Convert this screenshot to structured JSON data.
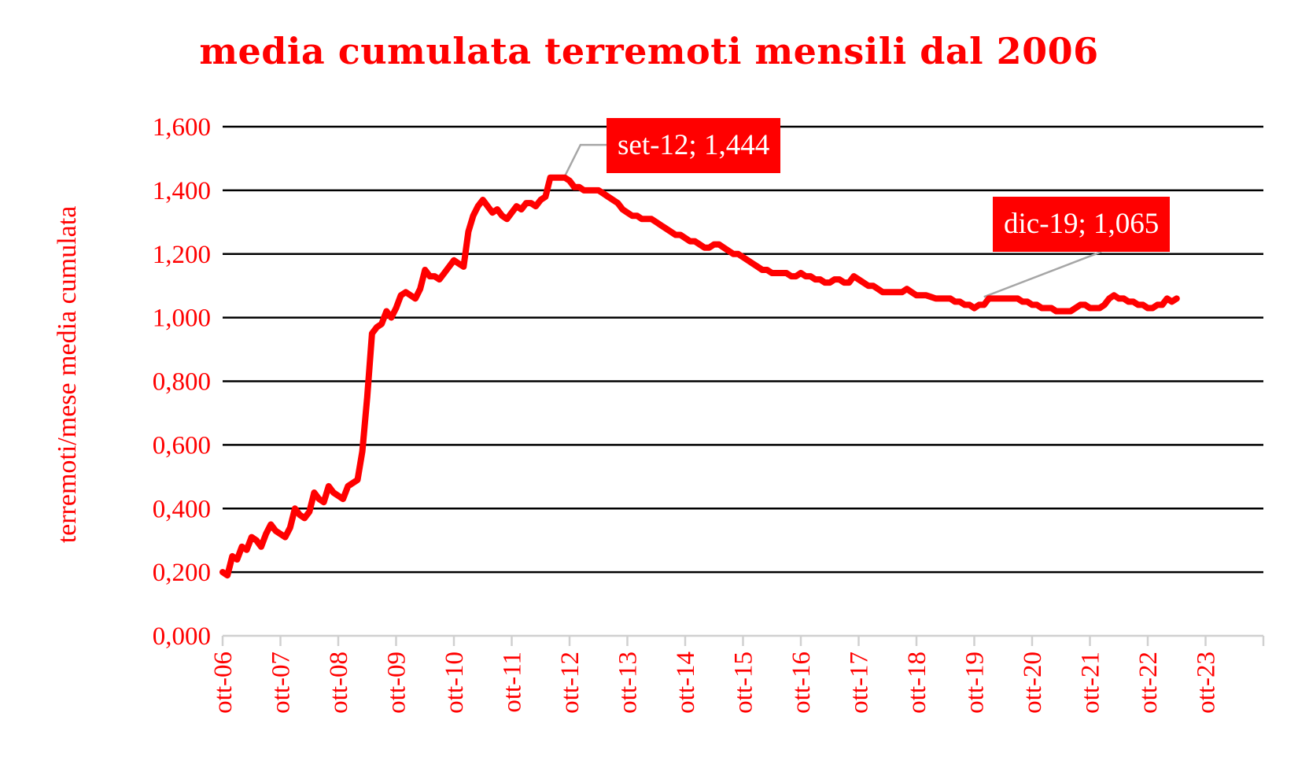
{
  "chart_data": {
    "type": "line",
    "title": "media cumulata terremoti mensili dal 2006",
    "xlabel": "",
    "ylabel": "terremoti/mese media cumulata",
    "ylim": [
      0,
      1.6
    ],
    "grid": true,
    "legend": "none",
    "y_ticks": [
      "0,000",
      "0,200",
      "0,400",
      "0,600",
      "0,800",
      "1,000",
      "1,200",
      "1,400",
      "1,600"
    ],
    "x_ticks": [
      "ott-06",
      "ott-07",
      "ott-08",
      "ott-09",
      "ott-10",
      "ott-11",
      "ott-12",
      "ott-13",
      "ott-14",
      "ott-15",
      "ott-16",
      "ott-17",
      "ott-18",
      "ott-19",
      "ott-20",
      "ott-21",
      "ott-22",
      "ott-23"
    ],
    "line_color": "#ff0000",
    "series": [
      {
        "name": "media cumulata",
        "start": "ott-06",
        "step": "month",
        "values": [
          0.2,
          0.19,
          0.25,
          0.24,
          0.28,
          0.27,
          0.31,
          0.3,
          0.28,
          0.32,
          0.35,
          0.33,
          0.32,
          0.31,
          0.34,
          0.4,
          0.38,
          0.37,
          0.39,
          0.45,
          0.43,
          0.42,
          0.47,
          0.45,
          0.44,
          0.43,
          0.47,
          0.48,
          0.49,
          0.58,
          0.75,
          0.95,
          0.97,
          0.98,
          1.02,
          1.0,
          1.03,
          1.07,
          1.08,
          1.07,
          1.06,
          1.09,
          1.15,
          1.13,
          1.13,
          1.12,
          1.14,
          1.16,
          1.18,
          1.17,
          1.16,
          1.27,
          1.32,
          1.35,
          1.37,
          1.35,
          1.33,
          1.34,
          1.32,
          1.31,
          1.33,
          1.35,
          1.34,
          1.36,
          1.36,
          1.35,
          1.37,
          1.38,
          1.44,
          1.44,
          1.44,
          1.44,
          1.43,
          1.41,
          1.41,
          1.4,
          1.4,
          1.4,
          1.4,
          1.39,
          1.38,
          1.37,
          1.36,
          1.34,
          1.33,
          1.32,
          1.32,
          1.31,
          1.31,
          1.31,
          1.3,
          1.29,
          1.28,
          1.27,
          1.26,
          1.26,
          1.25,
          1.24,
          1.24,
          1.23,
          1.22,
          1.22,
          1.23,
          1.23,
          1.22,
          1.21,
          1.2,
          1.2,
          1.19,
          1.18,
          1.17,
          1.16,
          1.15,
          1.15,
          1.14,
          1.14,
          1.14,
          1.14,
          1.13,
          1.13,
          1.14,
          1.13,
          1.13,
          1.12,
          1.12,
          1.11,
          1.11,
          1.12,
          1.12,
          1.11,
          1.11,
          1.13,
          1.12,
          1.11,
          1.1,
          1.1,
          1.09,
          1.08,
          1.08,
          1.08,
          1.08,
          1.08,
          1.09,
          1.08,
          1.07,
          1.07,
          1.07,
          1.065,
          1.06,
          1.06,
          1.06,
          1.06,
          1.05,
          1.05,
          1.04,
          1.04,
          1.03,
          1.04,
          1.04,
          1.06,
          1.06,
          1.06,
          1.06,
          1.06,
          1.06,
          1.06,
          1.05,
          1.05,
          1.04,
          1.04,
          1.03,
          1.03,
          1.03,
          1.02,
          1.02,
          1.02,
          1.02,
          1.03,
          1.04,
          1.04,
          1.03,
          1.03,
          1.03,
          1.04,
          1.06,
          1.07,
          1.06,
          1.06,
          1.05,
          1.05,
          1.04,
          1.04,
          1.03,
          1.03,
          1.04,
          1.04,
          1.06,
          1.05,
          1.06
        ]
      }
    ],
    "annotations": [
      {
        "label": "set-12; 1,444",
        "x": "set-12",
        "y": 1.444
      },
      {
        "label": "dic-19; 1,065",
        "x": "dic-19",
        "y": 1.065
      }
    ]
  }
}
